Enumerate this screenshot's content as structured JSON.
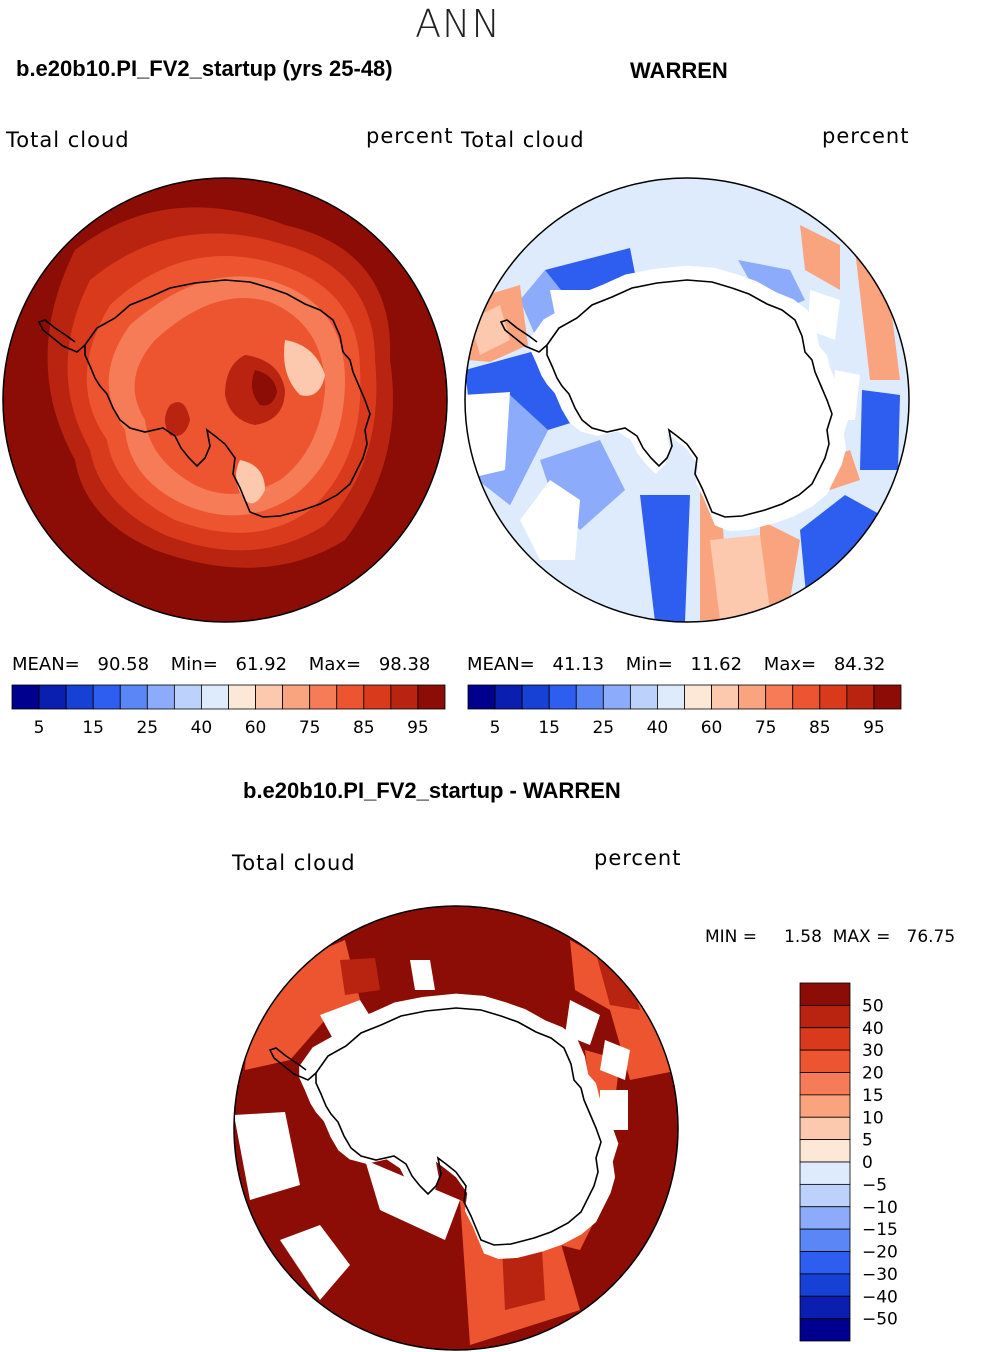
{
  "page_title": "ANN",
  "panels": [
    {
      "title": "b.e20b10.PI_FV2_startup (yrs 25-48)",
      "left_label": "Total cloud",
      "right_label": "percent",
      "stats": {
        "mean_label": "MEAN=",
        "mean": "90.58",
        "min_label": "Min=",
        "min": "61.92",
        "max_label": "Max=",
        "max": "98.38"
      }
    },
    {
      "title": "WARREN",
      "left_label": "Total cloud",
      "right_label": "percent",
      "stats": {
        "mean_label": "MEAN=",
        "mean": "41.13",
        "min_label": "Min=",
        "min": "11.62",
        "max_label": "Max=",
        "max": "84.32"
      }
    },
    {
      "title": "b.e20b10.PI_FV2_startup - WARREN",
      "left_label": "Total cloud",
      "right_label": "percent",
      "stats_text": "MIN =     1.58  MAX =   76.75"
    }
  ],
  "abs_colorbar": {
    "colors": [
      "#00008f",
      "#0a1fb0",
      "#1740d4",
      "#2e5ef0",
      "#5a87f5",
      "#8cabfa",
      "#bcd2fc",
      "#deebfc",
      "#fde8d8",
      "#fcc9ae",
      "#f9a47f",
      "#f57c56",
      "#ec5530",
      "#d93a1c",
      "#b82410",
      "#8c0d06"
    ],
    "labels": [
      "5",
      "15",
      "25",
      "40",
      "60",
      "75",
      "85",
      "95"
    ]
  },
  "diff_colorbar": {
    "colors": [
      "#8c0d06",
      "#b82410",
      "#d93a1c",
      "#ec5530",
      "#f57c56",
      "#f9a47f",
      "#fcc9ae",
      "#fde8d8",
      "#deebfc",
      "#bcd2fc",
      "#8cabfa",
      "#5a87f5",
      "#2e5ef0",
      "#1740d4",
      "#0a1fb0",
      "#00008f"
    ],
    "labels": [
      "50",
      "40",
      "30",
      "20",
      "15",
      "10",
      "5",
      "0",
      "−5",
      "−10",
      "−15",
      "−20",
      "−30",
      "−40",
      "−50"
    ]
  },
  "colors": {
    "ocean_high": "#8c0d06",
    "model_rings": [
      "#b82410",
      "#d93a1c",
      "#ec5530",
      "#f57c56",
      "#f9a47f",
      "#fcc9ae"
    ],
    "obs_base": "#deebfc",
    "obs_blue": "#2e5ef0",
    "obs_light_blue": "#8cabfa",
    "obs_red": "#f9a47f",
    "diff_mid": "#ec5530"
  }
}
